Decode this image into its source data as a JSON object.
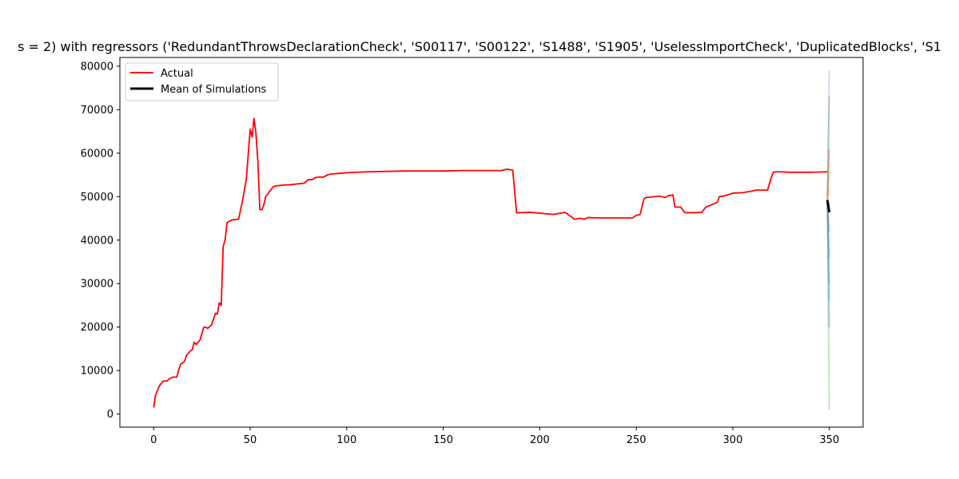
{
  "chart_data": {
    "type": "line",
    "title": "s = 2) with regressors ('RedundantThrowsDeclarationCheck', 'S00117', 'S00122', 'S1488', 'S1905', 'UselessImportCheck', 'DuplicatedBlocks', 'S1",
    "xlabel": "",
    "ylabel": "",
    "xlim": [
      -17.5,
      367.5
    ],
    "ylim": [
      -3000,
      82000
    ],
    "xticks": [
      0,
      50,
      100,
      150,
      200,
      250,
      300,
      350
    ],
    "yticks": [
      0,
      10000,
      20000,
      30000,
      40000,
      50000,
      60000,
      70000,
      80000
    ],
    "xtick_labels": [
      "0",
      "50",
      "100",
      "150",
      "200",
      "250",
      "300",
      "350"
    ],
    "ytick_labels": [
      "0",
      "10000",
      "20000",
      "30000",
      "40000",
      "50000",
      "60000",
      "70000",
      "80000"
    ],
    "legend": {
      "placement": "upper-left",
      "entries": [
        {
          "label": "Actual",
          "color": "#ff0000"
        },
        {
          "label": "Mean of Simulations",
          "color": "#000000"
        }
      ]
    },
    "series": [
      {
        "name": "Actual",
        "color": "#ff0000",
        "x": [
          0,
          1,
          3,
          5,
          7,
          8,
          10,
          12,
          13,
          14,
          16,
          17,
          19,
          20,
          21,
          22,
          24,
          26,
          27,
          28,
          30,
          32,
          33,
          34,
          35,
          36,
          37,
          38,
          39,
          40,
          41,
          42,
          44,
          46,
          48,
          50,
          51,
          52,
          53,
          54,
          55,
          56,
          57,
          58,
          59,
          60,
          62,
          64,
          66,
          68,
          70,
          72,
          74,
          76,
          78,
          80,
          82,
          84,
          86,
          88,
          90,
          92,
          95,
          100,
          110,
          130,
          150,
          160,
          170,
          180,
          183,
          186,
          188,
          190,
          195,
          200,
          207,
          212,
          213,
          215,
          218,
          221,
          223,
          225,
          230,
          240,
          248,
          250,
          252,
          254,
          255,
          257,
          262,
          265,
          267,
          268,
          269,
          270,
          271,
          273,
          275,
          276,
          277,
          280,
          284,
          286,
          290,
          292,
          293,
          295,
          298,
          300,
          305,
          310,
          312,
          318,
          320,
          321,
          322,
          325,
          330,
          340,
          349
        ],
        "y": [
          1500,
          4400,
          6500,
          7600,
          7600,
          8100,
          8500,
          8500,
          10200,
          11500,
          12100,
          13500,
          14500,
          14800,
          16500,
          16000,
          17000,
          20000,
          20000,
          19700,
          20500,
          23200,
          23000,
          25600,
          25000,
          38500,
          40000,
          44000,
          44300,
          44500,
          44700,
          44700,
          44800,
          49000,
          54000,
          65500,
          63700,
          68000,
          64500,
          58000,
          47000,
          47000,
          48000,
          50000,
          50500,
          51200,
          52300,
          52500,
          52600,
          52700,
          52700,
          52800,
          52900,
          53000,
          53100,
          53900,
          53900,
          54400,
          54500,
          54500,
          55000,
          55200,
          55300,
          55500,
          55700,
          55900,
          55900,
          56000,
          56000,
          56000,
          56300,
          56100,
          46300,
          46300,
          46400,
          46200,
          45900,
          46300,
          46400,
          45800,
          44800,
          45000,
          44800,
          45200,
          45100,
          45100,
          45100,
          45700,
          45900,
          49500,
          49800,
          49900,
          50100,
          49800,
          50300,
          50300,
          50400,
          47600,
          47600,
          47600,
          46400,
          46300,
          46300,
          46300,
          46400,
          47600,
          48300,
          48700,
          50000,
          50100,
          50500,
          50800,
          50900,
          51300,
          51500,
          51500,
          54500,
          55600,
          55700,
          55700,
          55600,
          55600,
          55700
        ]
      },
      {
        "name": "Mean of Simulations",
        "color": "#000000",
        "x": [
          349,
          350
        ],
        "y": [
          49200,
          46400
        ]
      }
    ],
    "simulations": [
      {
        "color": "#2ca02c",
        "x": [
          349,
          350
        ],
        "y": [
          49000,
          1000
        ]
      },
      {
        "color": "#1f77b4",
        "x": [
          349,
          350
        ],
        "y": [
          49500,
          20000
        ]
      },
      {
        "color": "#9467bd",
        "x": [
          349,
          350
        ],
        "y": [
          50000,
          79000
        ]
      },
      {
        "color": "#2ca02c",
        "x": [
          349,
          350
        ],
        "y": [
          50000,
          73000
        ]
      },
      {
        "color": "#d62728",
        "x": [
          349,
          350
        ],
        "y": [
          49000,
          61000
        ]
      },
      {
        "color": "#9467bd",
        "x": [
          349,
          350
        ],
        "y": [
          49200,
          30000
        ]
      },
      {
        "color": "#8c564b",
        "x": [
          349,
          350
        ],
        "y": [
          49000,
          42000
        ]
      },
      {
        "color": "#1f77b4",
        "x": [
          349,
          350
        ],
        "y": [
          49300,
          36000
        ]
      },
      {
        "color": "#e377c2",
        "x": [
          349,
          350
        ],
        "y": [
          49100,
          55000
        ]
      },
      {
        "color": "#bcbd22",
        "x": [
          349,
          350
        ],
        "y": [
          49000,
          58000
        ]
      },
      {
        "color": "#17becf",
        "x": [
          349,
          350
        ],
        "y": [
          49000,
          26000
        ]
      },
      {
        "color": "#ff7f0e",
        "x": [
          349,
          350
        ],
        "y": [
          49200,
          52000
        ]
      }
    ]
  }
}
